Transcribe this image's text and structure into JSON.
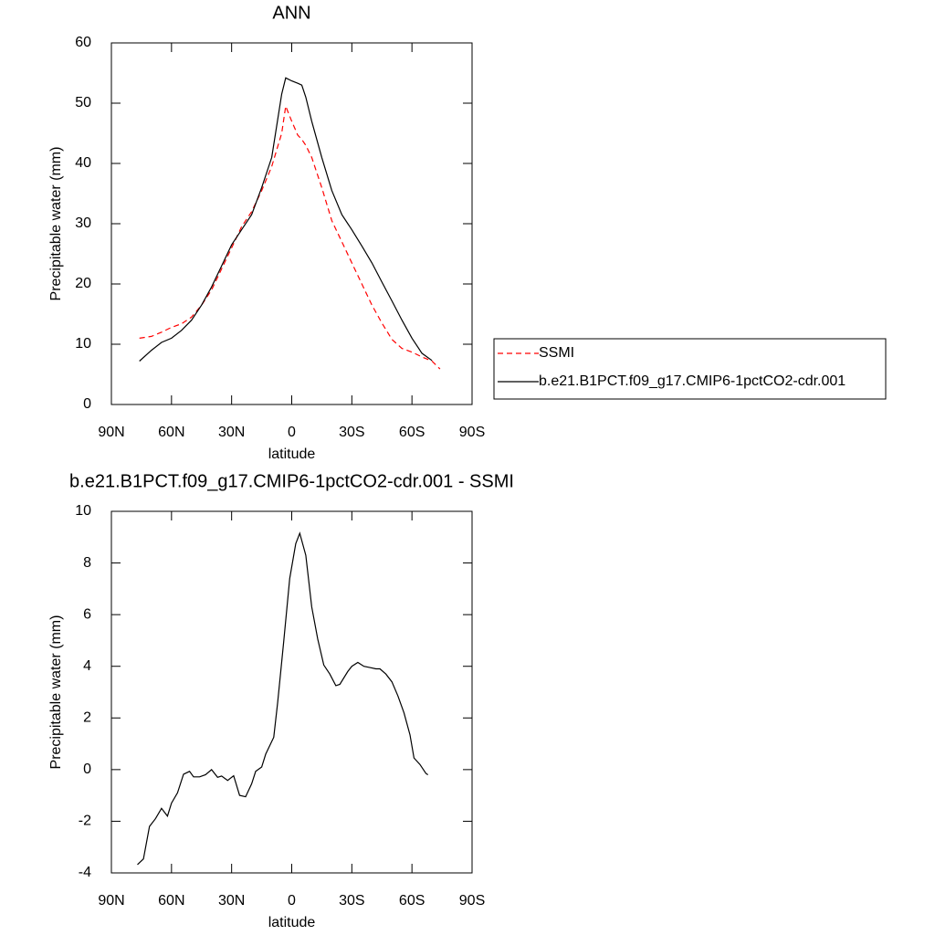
{
  "chart_data": [
    {
      "type": "line",
      "title": "ANN",
      "x_label": "latitude",
      "y_label": "Precipitable water (mm)",
      "x": [
        76,
        70,
        65,
        60,
        55,
        50,
        45,
        40,
        35,
        30,
        25,
        20,
        15,
        10,
        5,
        3,
        0,
        -3,
        -5,
        -7,
        -10,
        -15,
        -20,
        -25,
        -30,
        -35,
        -40,
        -45,
        -50,
        -55,
        -60,
        -65,
        -70,
        -74
      ],
      "series": [
        {
          "name": "SSMI",
          "color": "#ff0000",
          "style": "dashed",
          "values": [
            11,
            11.3,
            12,
            12.8,
            13.4,
            14.5,
            16.5,
            19,
            22.5,
            26,
            29.5,
            32,
            35.5,
            39.5,
            45,
            49.5,
            47,
            44.7,
            44,
            43,
            41,
            36,
            30.5,
            27,
            23.5,
            20,
            16.5,
            13.5,
            10.8,
            9.3,
            8.7,
            7.9,
            7.2,
            5.9
          ]
        },
        {
          "name": "b.e21.B1PCT.f09_g17.CMIP6-1pctCO2-cdr.001",
          "color": "#000000",
          "style": "solid",
          "values": [
            7.2,
            9.0,
            10.3,
            11.0,
            12.3,
            14.0,
            16.5,
            19.5,
            23,
            26.5,
            29,
            31.5,
            36,
            41,
            51.5,
            54.2,
            53.7,
            53.3,
            53.0,
            51,
            47,
            41,
            35.5,
            31.5,
            29,
            26.3,
            23.5,
            20.3,
            17.2,
            14,
            11,
            8.5,
            7.3,
            null
          ]
        }
      ],
      "xlim": [
        90,
        -90
      ],
      "xticks": [
        {
          "value": 90,
          "label": "90N"
        },
        {
          "value": 60,
          "label": "60N"
        },
        {
          "value": 30,
          "label": "30N"
        },
        0,
        {
          "value": -30,
          "label": "30S"
        },
        {
          "value": -60,
          "label": "60S"
        },
        {
          "value": -90,
          "label": "90S"
        }
      ],
      "ylim": [
        0,
        60
      ],
      "yticks": [
        0,
        10,
        20,
        30,
        40,
        50,
        60
      ],
      "legend": "right"
    },
    {
      "type": "line",
      "title": "b.e21.B1PCT.f09_g17.CMIP6-1pctCO2-cdr.001 - SSMI",
      "x_label": "latitude",
      "y_label": "Precipitable water (mm)",
      "x": [
        77,
        74,
        71,
        68,
        65,
        62,
        60,
        57,
        54,
        51,
        49,
        46,
        43,
        40,
        37,
        35,
        32,
        29,
        26,
        23,
        20,
        18,
        15,
        13,
        9,
        7,
        4,
        1,
        -2,
        -4,
        -7,
        -10,
        -13,
        -16,
        -19,
        -22,
        -24,
        -28,
        -30,
        -33,
        -36,
        -39,
        -42,
        -44,
        -47,
        -50,
        -53,
        -56,
        -59,
        -61,
        -64,
        -67,
        -68
      ],
      "values": [
        -3.68,
        -3.46,
        -2.2,
        -1.9,
        -1.5,
        -1.8,
        -1.3,
        -0.9,
        -0.18,
        -0.07,
        -0.28,
        -0.28,
        -0.2,
        0,
        -0.3,
        -0.25,
        -0.42,
        -0.24,
        -1.0,
        -1.05,
        -0.55,
        -0.07,
        0.1,
        0.6,
        1.25,
        2.6,
        4.95,
        7.4,
        8.75,
        9.15,
        8.3,
        6.3,
        5.05,
        4.05,
        3.7,
        3.25,
        3.3,
        3.8,
        4.0,
        4.15,
        4.0,
        3.95,
        3.9,
        3.9,
        3.7,
        3.4,
        2.85,
        2.2,
        1.35,
        0.45,
        0.2,
        -0.15,
        -0.2
      ],
      "color": "#000000",
      "xlim": [
        90,
        -90
      ],
      "xticks": [
        {
          "value": 90,
          "label": "90N"
        },
        {
          "value": 60,
          "label": "60N"
        },
        {
          "value": 30,
          "label": "30N"
        },
        0,
        {
          "value": -30,
          "label": "30S"
        },
        {
          "value": -60,
          "label": "60S"
        },
        {
          "value": -90,
          "label": "90S"
        }
      ],
      "ylim": [
        -4,
        10
      ],
      "yticks": [
        -4,
        -2,
        0,
        2,
        4,
        6,
        8,
        10
      ]
    }
  ]
}
